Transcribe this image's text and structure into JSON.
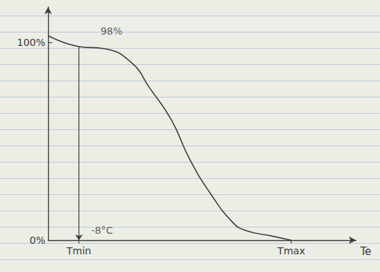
{
  "chart_data": {
    "type": "line",
    "x_label": "Te",
    "x": [
      0,
      10,
      18,
      27,
      33,
      40,
      46,
      53,
      60,
      64,
      73,
      79
    ],
    "values": [
      103.5,
      98,
      97,
      90,
      77,
      61,
      41,
      23,
      9,
      5,
      2,
      0
    ],
    "color": "#3b3b3b",
    "xlim": [
      0,
      100
    ],
    "xticks": [
      {
        "value": 10,
        "label": "Tmin"
      },
      {
        "value": 79,
        "label": "Tmax"
      }
    ],
    "ylim": [
      0,
      118
    ],
    "yticks": [
      {
        "value": 0,
        "label": "0%"
      },
      {
        "value": 100,
        "label": "100%"
      }
    ],
    "grid": false,
    "guide": {
      "x": 10,
      "from": 98,
      "to": 0
    },
    "annotations": [
      {
        "text": "98%",
        "x": 17,
        "y": 106
      },
      {
        "text": "-8°C",
        "x": 14,
        "y": 5
      }
    ]
  }
}
